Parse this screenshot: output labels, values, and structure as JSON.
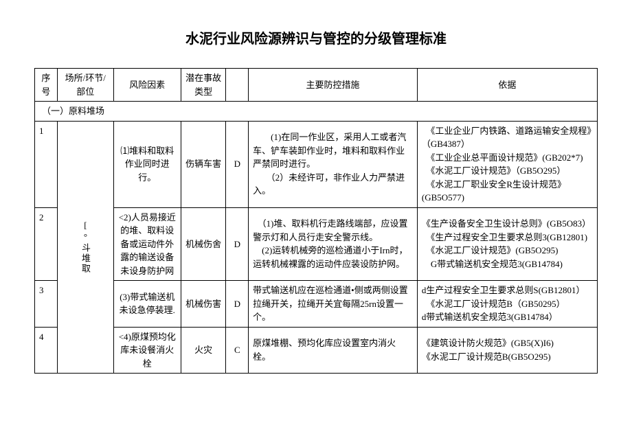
{
  "title": "水泥行业风险源辨识与管控的分级管理标准",
  "headers": {
    "seq": "序号",
    "place": "场所/环节/部位",
    "risk": "风险因素",
    "type": "潜在事故类型",
    "level": "",
    "measures": "主要防控措施",
    "basis": "依据"
  },
  "section_label": "（一）原料堆场",
  "place_group": "[°斗堆取",
  "rows": [
    {
      "seq": "1",
      "risk": "⑴堆料和取料作业同时进行。",
      "type": "伤辆车害",
      "level": "D",
      "measures": "　　(1)在同一作业区，采用人工或者汽车、铲车装卸作业时，堆料和取料作业严禁同时进行。\n　　（2）未经许可，非作业人力严禁进入。",
      "basis": "　《工业企业厂内铁路、道路运输安全规程》（GB4387）\n　《工业企业总平面设计规范》(GB202*7)\n　《水泥工厂设计规范》（GB5O295）\n　《水泥工厂职业安全R生设计规范》(GB5O577)"
    },
    {
      "seq": "2",
      "risk": "<2)人员易接近的堆、取料设备或运动件外露的输送设备未设身防护网",
      "type": "机械伤舍",
      "level": "D",
      "measures": "　（1)堆、取料机行走路线端部，应设置警示灯和人员行走安全警示线。\n　(2)运转机械旁的巡检通道小于Irn时，运转机械裸露的运动件应装设防护网。",
      "basis": "《生产设备安全卫生设计总则》(GB5O83）\n　《生产过程安全卫生要求总则3(GB12801)\n　《水泥工厂设计规范》(GB5O295)\n　G带式输送机安全规范3(GB14784)"
    },
    {
      "seq": "3",
      "risk": "(3)带式输送机未设急停装理.",
      "type": "机械伤害",
      "level": "D",
      "measures": "带式输送机应在巡检通道•侧或两侧设置拉绳开关，拉绳开关宜每隔25rn设置一个。",
      "basis": "d生产过程安全卫生要求总则S(GB12801）\n　《水泥工厂设计规范B（GB50295）\nd带式输送机安全规范3(GB14784）"
    },
    {
      "seq": "4",
      "risk": "<4)原煤预均化库未设餐消火栓",
      "type": "火灾",
      "level": "C",
      "measures": "原煤堆棚、预均化库应设置室内消火栓。",
      "basis": "《建筑设计防火规范》(GB5(X)I6)\n《水泥工厂设计规范B(GB5O295)"
    }
  ]
}
